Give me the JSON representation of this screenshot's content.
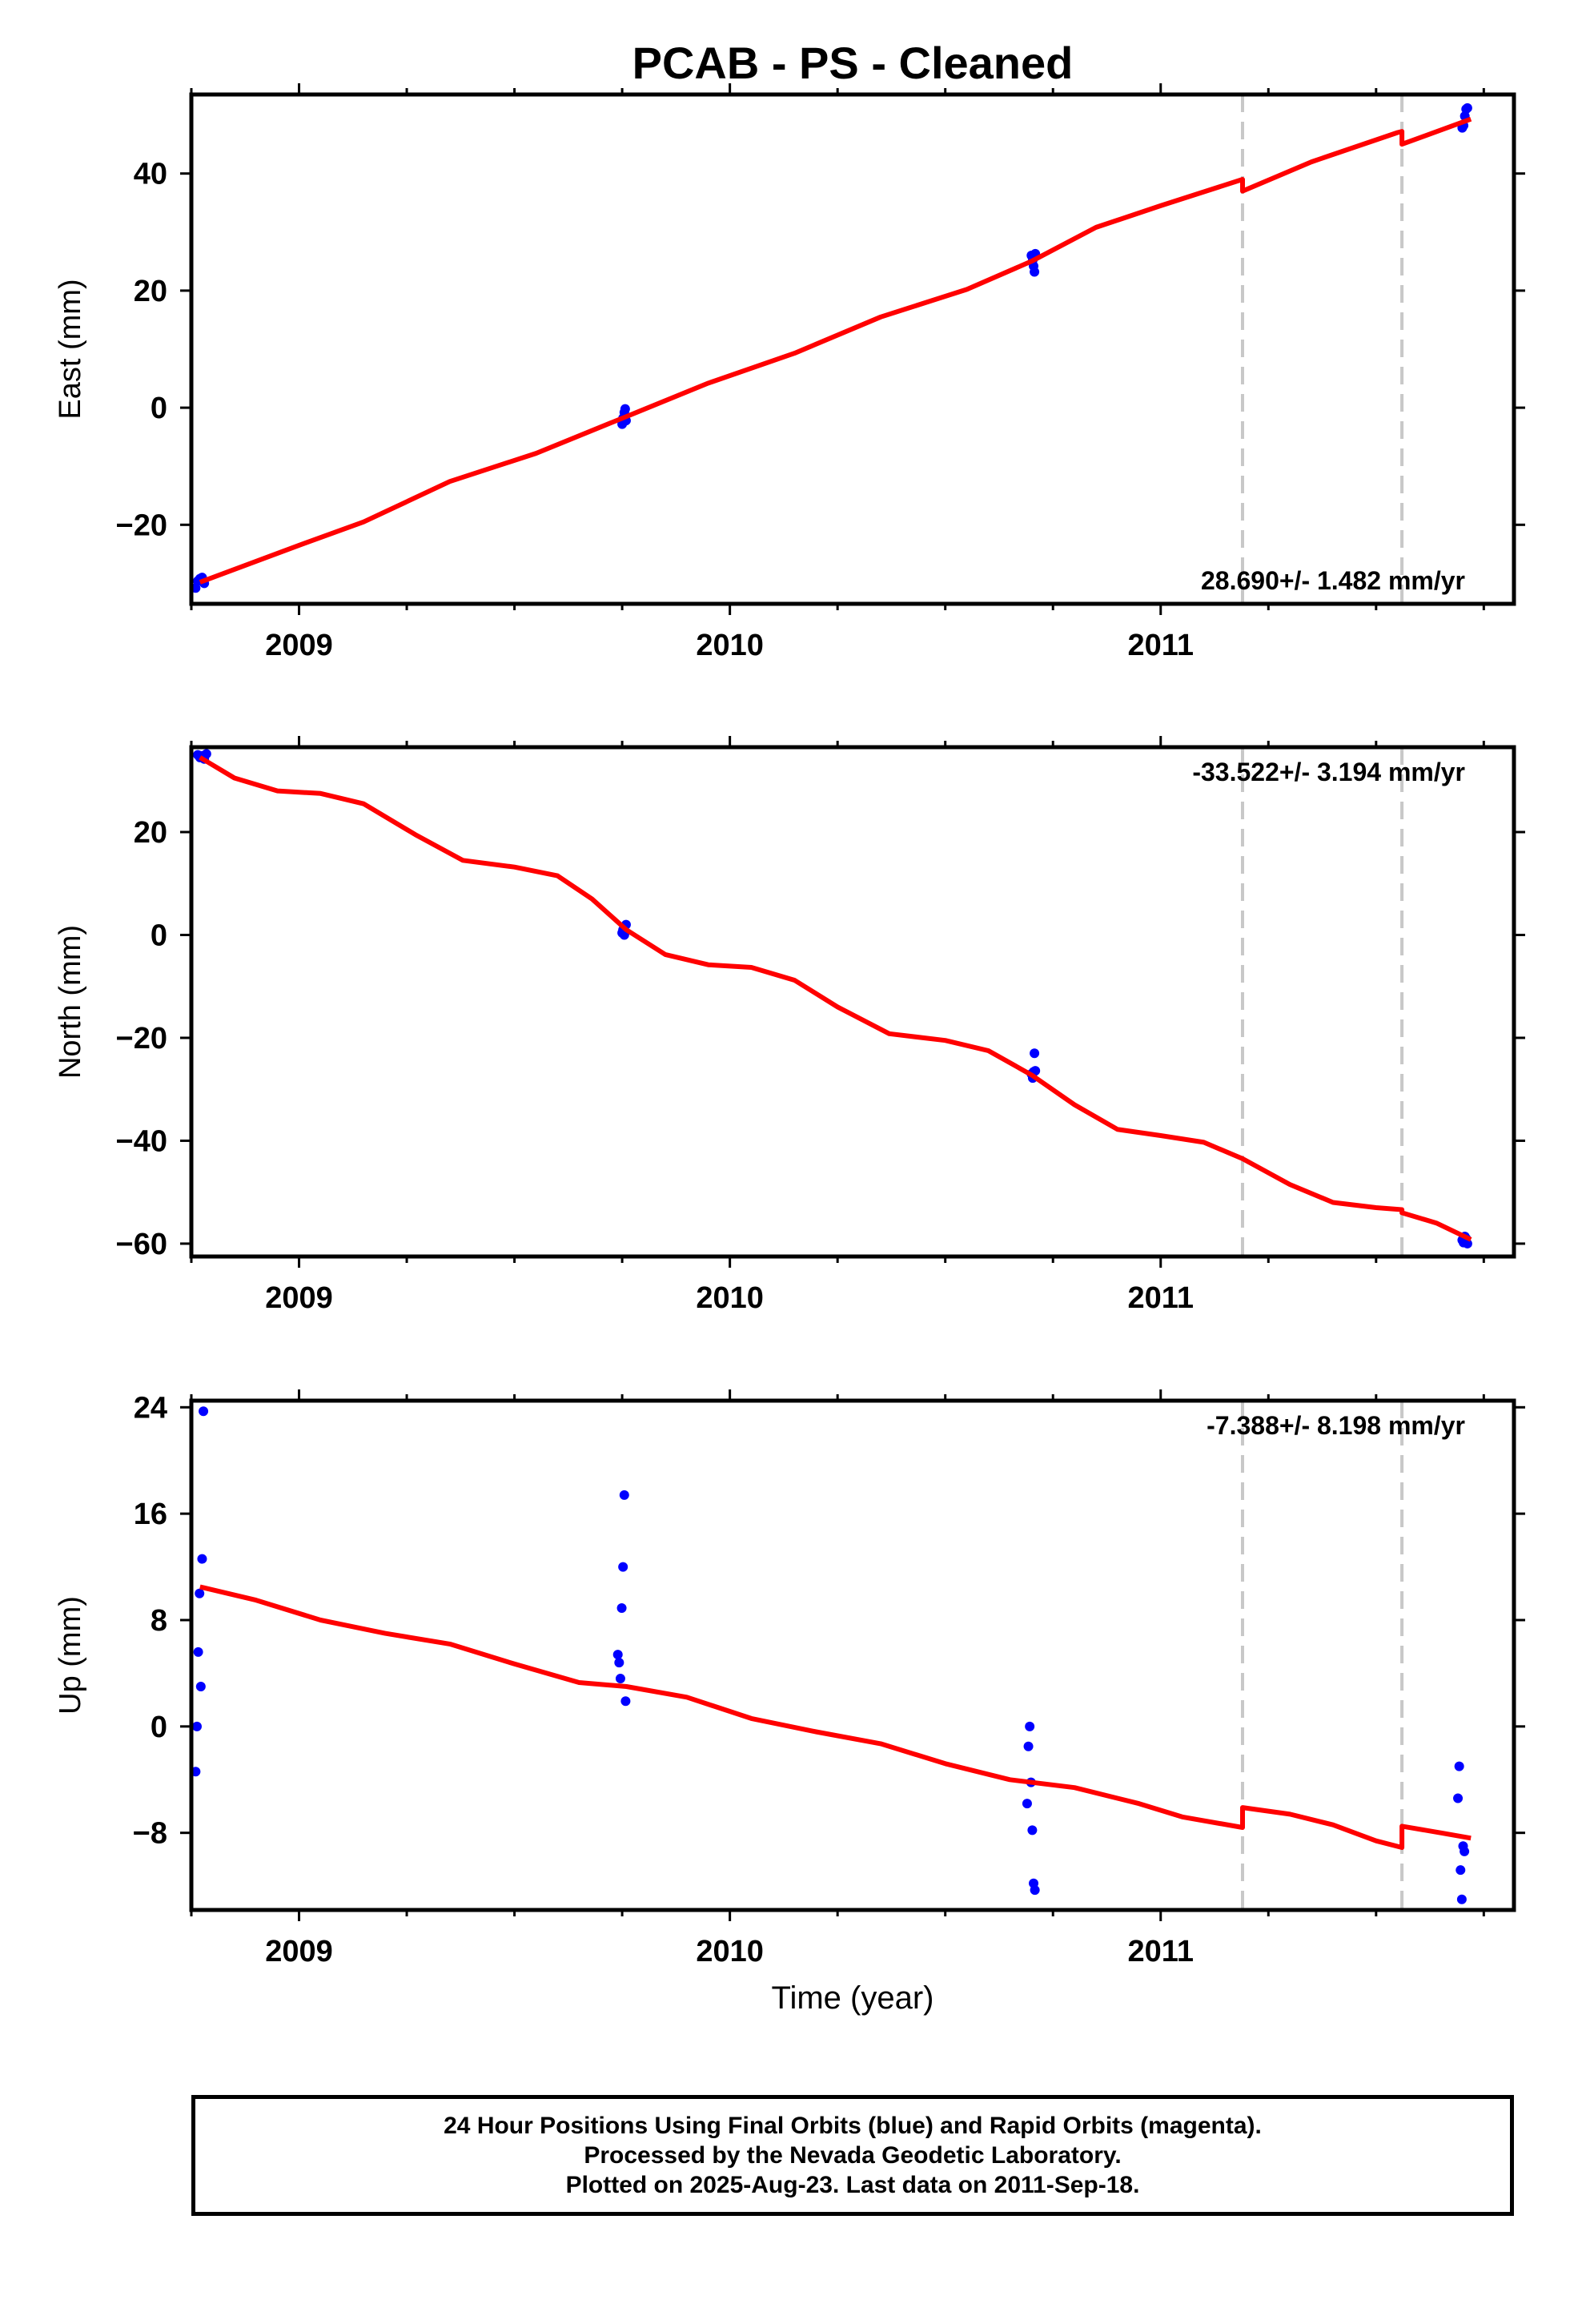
{
  "title": "PCAB  - PS - Cleaned",
  "xlabel": "Time (year)",
  "footer": {
    "line1": "24 Hour Positions Using Final Orbits (blue) and Rapid Orbits (magenta).",
    "line2": "Processed by the Nevada Geodetic Laboratory.",
    "line3": "Plotted on 2025-Aug-23. Last data on 2011-Sep-18."
  },
  "colors": {
    "data": "#0000ff",
    "model": "#ff0000",
    "steps": "#c8c8c8",
    "axes": "#000000"
  },
  "chart_data": [
    {
      "type": "scatter",
      "name": "East",
      "ylabel": "East (mm)",
      "rate": "28.690+/- 1.482 mm/yr",
      "rate_position": "bottom-right",
      "xlim": [
        2008.75,
        2011.82
      ],
      "ylim": [
        -33.5,
        53.5
      ],
      "xticks": [
        2009,
        2010,
        2011
      ],
      "xtick_labels": [
        "2009",
        "2010",
        "2011"
      ],
      "yticks": [
        -20,
        0,
        20,
        40
      ],
      "ytick_labels": [
        "−20",
        "0",
        "20",
        "40"
      ],
      "step_lines": [
        2011.19,
        2011.56
      ],
      "points": [
        {
          "x": 2008.76,
          "y": -30.8
        },
        {
          "x": 2008.765,
          "y": -29.6
        },
        {
          "x": 2008.77,
          "y": -29.2
        },
        {
          "x": 2008.775,
          "y": -29.0
        },
        {
          "x": 2008.78,
          "y": -30.0
        },
        {
          "x": 2009.75,
          "y": -2.8
        },
        {
          "x": 2009.752,
          "y": -1.8
        },
        {
          "x": 2009.755,
          "y": -0.8
        },
        {
          "x": 2009.757,
          "y": -0.2
        },
        {
          "x": 2009.759,
          "y": -2.2
        },
        {
          "x": 2010.7,
          "y": 26.0
        },
        {
          "x": 2010.703,
          "y": 25.2
        },
        {
          "x": 2010.705,
          "y": 24.2
        },
        {
          "x": 2010.707,
          "y": 23.2
        },
        {
          "x": 2010.709,
          "y": 26.3
        },
        {
          "x": 2011.7,
          "y": 47.8
        },
        {
          "x": 2011.703,
          "y": 48.2
        },
        {
          "x": 2011.706,
          "y": 49.8
        },
        {
          "x": 2011.709,
          "y": 51.0
        },
        {
          "x": 2011.712,
          "y": 51.2
        }
      ],
      "model": [
        {
          "x": 2008.77,
          "y": -29.8
        },
        {
          "x": 2009.0,
          "y": -23.5
        },
        {
          "x": 2009.15,
          "y": -19.5
        },
        {
          "x": 2009.35,
          "y": -12.6
        },
        {
          "x": 2009.55,
          "y": -7.8
        },
        {
          "x": 2009.76,
          "y": -1.5
        },
        {
          "x": 2009.95,
          "y": 4.2
        },
        {
          "x": 2010.15,
          "y": 9.3
        },
        {
          "x": 2010.35,
          "y": 15.5
        },
        {
          "x": 2010.55,
          "y": 20.2
        },
        {
          "x": 2010.7,
          "y": 25.0
        },
        {
          "x": 2010.85,
          "y": 30.8
        },
        {
          "x": 2011.0,
          "y": 34.5
        },
        {
          "x": 2011.19,
          "y": 39.0
        },
        {
          "x": 2011.19,
          "y": 37.0
        },
        {
          "x": 2011.35,
          "y": 42.0
        },
        {
          "x": 2011.55,
          "y": 47.0
        },
        {
          "x": 2011.56,
          "y": 47.2
        },
        {
          "x": 2011.56,
          "y": 45.0
        },
        {
          "x": 2011.72,
          "y": 49.3
        }
      ]
    },
    {
      "type": "scatter",
      "name": "North",
      "ylabel": "North (mm)",
      "rate": "-33.522+/- 3.194 mm/yr",
      "rate_position": "top-right",
      "xlim": [
        2008.75,
        2011.82
      ],
      "ylim": [
        -62.5,
        36.5
      ],
      "xticks": [
        2009,
        2010,
        2011
      ],
      "xtick_labels": [
        "2009",
        "2010",
        "2011"
      ],
      "yticks": [
        -60,
        -40,
        -20,
        0,
        20
      ],
      "ytick_labels": [
        "−60",
        "−40",
        "−20",
        "0",
        "20"
      ],
      "step_lines": [
        2011.19,
        2011.56
      ],
      "points": [
        {
          "x": 2008.765,
          "y": 35.0
        },
        {
          "x": 2008.77,
          "y": 34.5
        },
        {
          "x": 2008.775,
          "y": 34.8
        },
        {
          "x": 2008.78,
          "y": 34.2
        },
        {
          "x": 2008.785,
          "y": 35.2
        },
        {
          "x": 2009.75,
          "y": 0.4
        },
        {
          "x": 2009.752,
          "y": 1.0
        },
        {
          "x": 2009.755,
          "y": 0.0
        },
        {
          "x": 2009.757,
          "y": 0.6
        },
        {
          "x": 2009.759,
          "y": 2.0
        },
        {
          "x": 2010.7,
          "y": -27.0
        },
        {
          "x": 2010.703,
          "y": -27.8
        },
        {
          "x": 2010.705,
          "y": -26.6
        },
        {
          "x": 2010.707,
          "y": -23.0
        },
        {
          "x": 2010.709,
          "y": -26.4
        },
        {
          "x": 2011.7,
          "y": -59.3
        },
        {
          "x": 2011.703,
          "y": -59.8
        },
        {
          "x": 2011.706,
          "y": -58.6
        },
        {
          "x": 2011.709,
          "y": -59.0
        },
        {
          "x": 2011.712,
          "y": -60.0
        }
      ],
      "model": [
        {
          "x": 2008.77,
          "y": 34.5
        },
        {
          "x": 2008.85,
          "y": 30.5
        },
        {
          "x": 2008.95,
          "y": 28.0
        },
        {
          "x": 2009.05,
          "y": 27.5
        },
        {
          "x": 2009.15,
          "y": 25.5
        },
        {
          "x": 2009.27,
          "y": 19.5
        },
        {
          "x": 2009.38,
          "y": 14.5
        },
        {
          "x": 2009.5,
          "y": 13.2
        },
        {
          "x": 2009.6,
          "y": 11.5
        },
        {
          "x": 2009.68,
          "y": 7.0
        },
        {
          "x": 2009.76,
          "y": 1.0
        },
        {
          "x": 2009.85,
          "y": -3.8
        },
        {
          "x": 2009.95,
          "y": -5.8
        },
        {
          "x": 2010.05,
          "y": -6.3
        },
        {
          "x": 2010.15,
          "y": -8.8
        },
        {
          "x": 2010.25,
          "y": -14.0
        },
        {
          "x": 2010.37,
          "y": -19.2
        },
        {
          "x": 2010.5,
          "y": -20.5
        },
        {
          "x": 2010.6,
          "y": -22.5
        },
        {
          "x": 2010.7,
          "y": -27.2
        },
        {
          "x": 2010.8,
          "y": -33.0
        },
        {
          "x": 2010.9,
          "y": -37.8
        },
        {
          "x": 2011.0,
          "y": -39.0
        },
        {
          "x": 2011.1,
          "y": -40.3
        },
        {
          "x": 2011.19,
          "y": -43.5
        },
        {
          "x": 2011.3,
          "y": -48.5
        },
        {
          "x": 2011.4,
          "y": -52.0
        },
        {
          "x": 2011.5,
          "y": -53.0
        },
        {
          "x": 2011.56,
          "y": -53.4
        },
        {
          "x": 2011.56,
          "y": -54.0
        },
        {
          "x": 2011.64,
          "y": -56.0
        },
        {
          "x": 2011.72,
          "y": -59.2
        }
      ]
    },
    {
      "type": "scatter",
      "name": "Up",
      "ylabel": "Up (mm)",
      "rate": "-7.388+/- 8.198 mm/yr",
      "rate_position": "top-right",
      "xlim": [
        2008.75,
        2011.82
      ],
      "ylim": [
        -13.8,
        24.5
      ],
      "xticks": [
        2009,
        2010,
        2011
      ],
      "xtick_labels": [
        "2009",
        "2010",
        "2011"
      ],
      "yticks": [
        -8,
        0,
        8,
        16,
        24
      ],
      "ytick_labels": [
        "−8",
        "0",
        "8",
        "16",
        "24"
      ],
      "step_lines": [
        2011.19,
        2011.56
      ],
      "points": [
        {
          "x": 2008.76,
          "y": -3.4
        },
        {
          "x": 2008.763,
          "y": 0.0
        },
        {
          "x": 2008.766,
          "y": 5.6
        },
        {
          "x": 2008.769,
          "y": 10.0
        },
        {
          "x": 2008.772,
          "y": 3.0
        },
        {
          "x": 2008.775,
          "y": 12.6
        },
        {
          "x": 2008.778,
          "y": 23.7
        },
        {
          "x": 2009.74,
          "y": 5.4
        },
        {
          "x": 2009.743,
          "y": 4.8
        },
        {
          "x": 2009.746,
          "y": 3.6
        },
        {
          "x": 2009.749,
          "y": 8.9
        },
        {
          "x": 2009.752,
          "y": 12.0
        },
        {
          "x": 2009.755,
          "y": 17.4
        },
        {
          "x": 2009.758,
          "y": 1.9
        },
        {
          "x": 2010.69,
          "y": -5.8
        },
        {
          "x": 2010.693,
          "y": -1.5
        },
        {
          "x": 2010.696,
          "y": 0.0
        },
        {
          "x": 2010.699,
          "y": -4.2
        },
        {
          "x": 2010.702,
          "y": -7.8
        },
        {
          "x": 2010.705,
          "y": -11.8
        },
        {
          "x": 2010.708,
          "y": -12.3
        },
        {
          "x": 2011.69,
          "y": -5.4
        },
        {
          "x": 2011.693,
          "y": -3.0
        },
        {
          "x": 2011.696,
          "y": -10.8
        },
        {
          "x": 2011.699,
          "y": -13.0
        },
        {
          "x": 2011.702,
          "y": -9.0
        },
        {
          "x": 2011.705,
          "y": -9.4
        }
      ],
      "model": [
        {
          "x": 2008.77,
          "y": 10.5
        },
        {
          "x": 2008.9,
          "y": 9.5
        },
        {
          "x": 2009.05,
          "y": 8.0
        },
        {
          "x": 2009.2,
          "y": 7.0
        },
        {
          "x": 2009.35,
          "y": 6.2
        },
        {
          "x": 2009.5,
          "y": 4.7
        },
        {
          "x": 2009.65,
          "y": 3.3
        },
        {
          "x": 2009.76,
          "y": 3.0
        },
        {
          "x": 2009.9,
          "y": 2.2
        },
        {
          "x": 2010.05,
          "y": 0.6
        },
        {
          "x": 2010.2,
          "y": -0.4
        },
        {
          "x": 2010.35,
          "y": -1.3
        },
        {
          "x": 2010.5,
          "y": -2.8
        },
        {
          "x": 2010.65,
          "y": -4.0
        },
        {
          "x": 2010.8,
          "y": -4.6
        },
        {
          "x": 2010.95,
          "y": -5.8
        },
        {
          "x": 2011.05,
          "y": -6.8
        },
        {
          "x": 2011.19,
          "y": -7.6
        },
        {
          "x": 2011.19,
          "y": -6.1
        },
        {
          "x": 2011.3,
          "y": -6.6
        },
        {
          "x": 2011.4,
          "y": -7.4
        },
        {
          "x": 2011.5,
          "y": -8.6
        },
        {
          "x": 2011.56,
          "y": -9.1
        },
        {
          "x": 2011.56,
          "y": -7.5
        },
        {
          "x": 2011.65,
          "y": -8.0
        },
        {
          "x": 2011.72,
          "y": -8.4
        }
      ]
    }
  ]
}
